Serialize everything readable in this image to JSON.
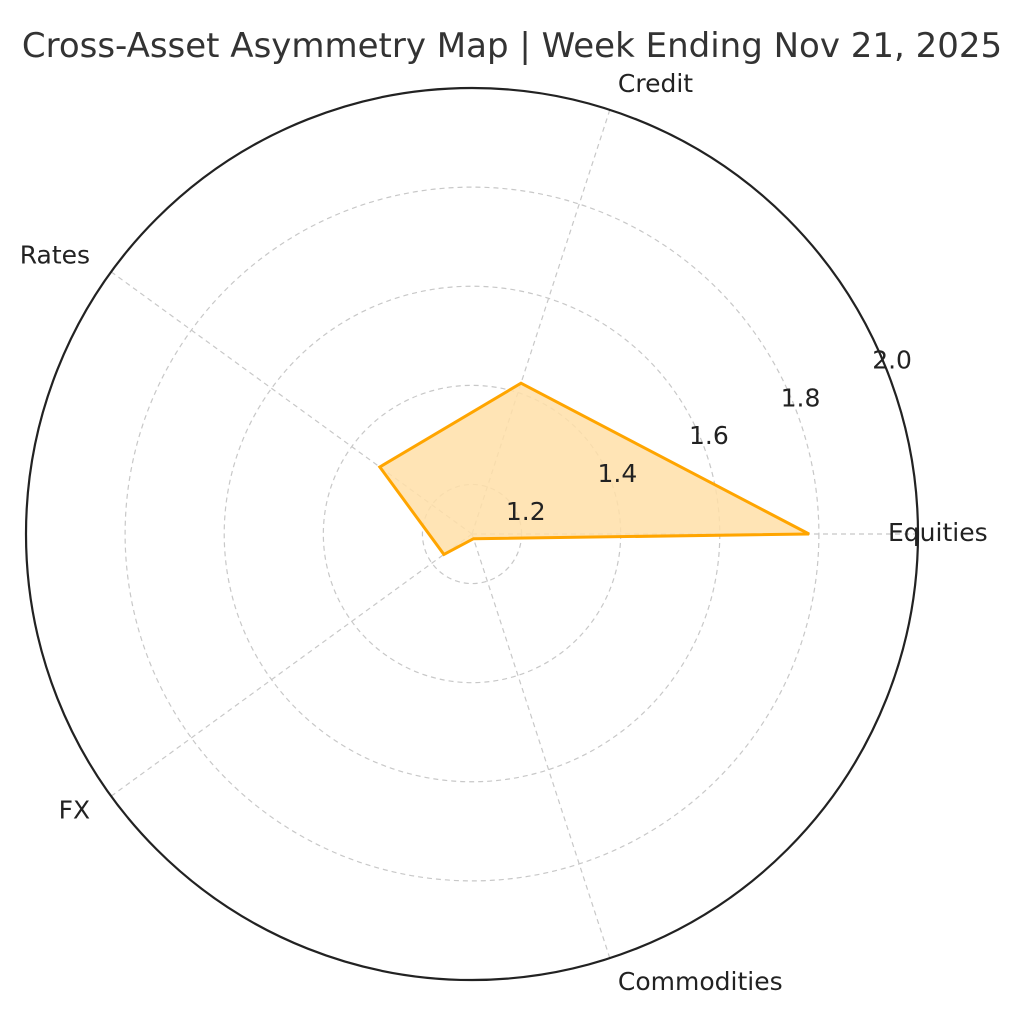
{
  "chart_data": {
    "type": "radar",
    "title": "Cross-Asset Asymmetry Map | Week Ending Nov 21, 2025",
    "categories": [
      "Equities",
      "Credit",
      "Rates",
      "FX",
      "Commodities"
    ],
    "series": [
      {
        "values": [
          1.78,
          1.42,
          1.33,
          1.17,
          1.11
        ]
      }
    ],
    "rlim": [
      1.1,
      2.0
    ],
    "r_ticks": [
      "1.2",
      "1.4",
      "1.6",
      "1.8",
      "2.0"
    ],
    "r_tick_values": [
      1.2,
      1.4,
      1.6,
      1.8,
      2.0
    ],
    "grid": true,
    "colors": {
      "line": "#FFA500",
      "fill": "#FFDFA8"
    }
  }
}
